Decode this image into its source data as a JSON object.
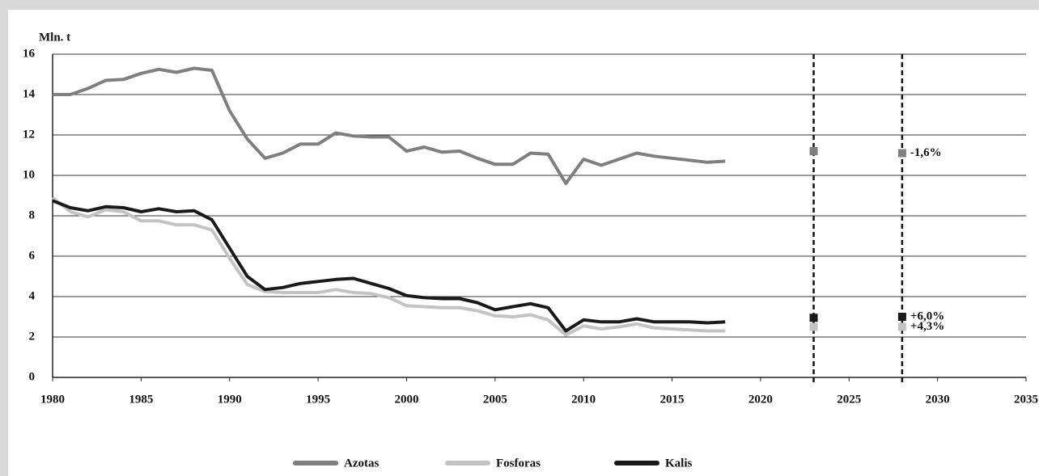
{
  "chart_data": {
    "type": "line",
    "y_label": "Mln. t",
    "x": [
      1980,
      1981,
      1982,
      1983,
      1984,
      1985,
      1986,
      1987,
      1988,
      1989,
      1990,
      1991,
      1992,
      1993,
      1994,
      1995,
      1996,
      1997,
      1998,
      1999,
      2000,
      2001,
      2002,
      2003,
      2004,
      2005,
      2006,
      2007,
      2008,
      2009,
      2010,
      2011,
      2012,
      2013,
      2014,
      2015,
      2016,
      2017,
      2018
    ],
    "series": [
      {
        "name": "Azotas",
        "color": "#7f7f7f",
        "values": [
          14.0,
          14.0,
          14.3,
          14.7,
          14.75,
          15.05,
          15.25,
          15.1,
          15.3,
          15.2,
          13.2,
          11.8,
          10.85,
          11.1,
          11.55,
          11.55,
          12.1,
          11.95,
          11.9,
          11.9,
          11.2,
          11.4,
          11.15,
          11.2,
          10.85,
          10.55,
          10.55,
          11.1,
          11.05,
          9.6,
          10.8,
          10.5,
          10.8,
          11.1,
          10.95,
          10.85,
          10.75,
          10.65,
          10.7
        ],
        "projection": {
          "x": [
            2023,
            2028
          ],
          "values": [
            11.2,
            11.1
          ]
        },
        "annotation": "-1,6%"
      },
      {
        "name": "Fosforas",
        "color": "#c3c3c3",
        "values": [
          8.9,
          8.2,
          7.95,
          8.3,
          8.2,
          7.75,
          7.75,
          7.55,
          7.55,
          7.3,
          5.9,
          4.6,
          4.25,
          4.2,
          4.2,
          4.2,
          4.35,
          4.2,
          4.15,
          3.95,
          3.55,
          3.5,
          3.45,
          3.45,
          3.3,
          3.05,
          3.0,
          3.1,
          2.85,
          2.1,
          2.55,
          2.4,
          2.5,
          2.65,
          2.45,
          2.4,
          2.35,
          2.3,
          2.3
        ],
        "projection": {
          "x": [
            2023,
            2028
          ],
          "values": [
            2.5,
            2.5
          ]
        },
        "annotation": "+4,3%"
      },
      {
        "name": "Kalis",
        "color": "#1a1a1a",
        "values": [
          8.75,
          8.4,
          8.25,
          8.45,
          8.4,
          8.2,
          8.35,
          8.2,
          8.25,
          7.8,
          6.4,
          5.0,
          4.35,
          4.45,
          4.65,
          4.75,
          4.85,
          4.9,
          4.65,
          4.4,
          4.05,
          3.95,
          3.9,
          3.9,
          3.7,
          3.35,
          3.5,
          3.65,
          3.45,
          2.3,
          2.85,
          2.75,
          2.75,
          2.9,
          2.75,
          2.75,
          2.75,
          2.7,
          2.75
        ],
        "projection": {
          "x": [
            2023,
            2028
          ],
          "values": [
            2.95,
            3.0
          ]
        },
        "annotation": "+6,0%"
      }
    ],
    "vlines": [
      2023,
      2028
    ],
    "xlim": [
      1980,
      2035
    ],
    "xticks": [
      1980,
      1985,
      1990,
      1995,
      2000,
      2005,
      2010,
      2015,
      2020,
      2025,
      2030,
      2035
    ],
    "ylim": [
      0,
      16
    ],
    "yticks": [
      0,
      2,
      4,
      6,
      8,
      10,
      12,
      14,
      16
    ],
    "grid": true
  }
}
